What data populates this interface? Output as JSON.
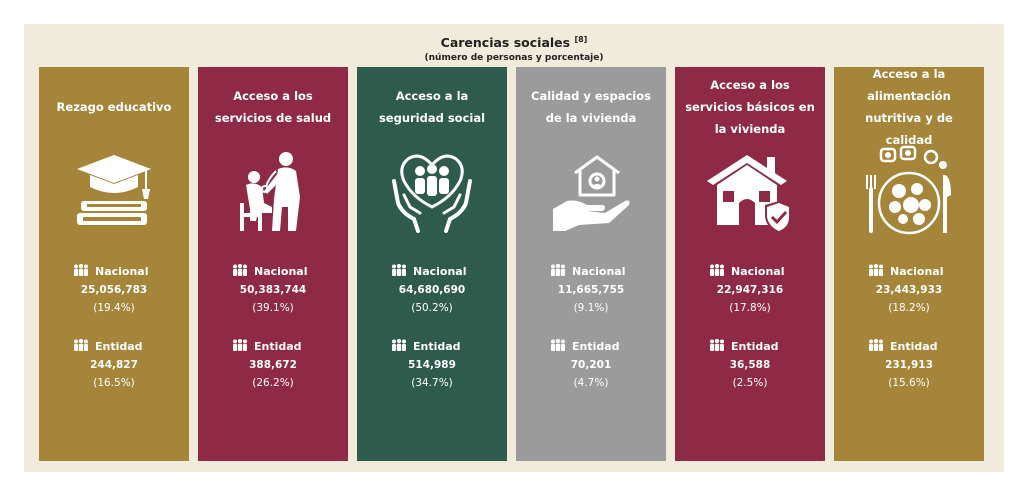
{
  "header": {
    "title": "Carencias sociales",
    "title_ref": "[8]",
    "subtitle": "(número de personas y porcentaje)"
  },
  "labels": {
    "nacional": "Nacional",
    "entidad": "Entidad"
  },
  "colors": {
    "gold": "#a5853a",
    "maroon": "#8e2a45",
    "green": "#2f5b4c",
    "gray": "#9b9b9b",
    "frame": "#f1ebdb"
  },
  "cards": [
    {
      "title": "Rezago educativo",
      "color": "#a5853a",
      "icon": "graduation-books-icon",
      "nacional_value": "25,056,783",
      "nacional_pct": "(19.4%)",
      "entidad_value": "244,827",
      "entidad_pct": "(16.5%)"
    },
    {
      "title": "Acceso a los servicios de salud",
      "color": "#8e2a45",
      "icon": "doctor-patient-icon",
      "nacional_value": "50,383,744",
      "nacional_pct": "(39.1%)",
      "entidad_value": "388,672",
      "entidad_pct": "(26.2%)"
    },
    {
      "title": "Acceso a la seguridad social",
      "color": "#2f5b4c",
      "icon": "hands-family-heart-icon",
      "nacional_value": "64,680,690",
      "nacional_pct": "(50.2%)",
      "entidad_value": "514,989",
      "entidad_pct": "(34.7%)"
    },
    {
      "title": "Calidad y espacios de la vivienda",
      "color": "#9b9b9b",
      "icon": "hand-house-icon",
      "nacional_value": "11,665,755",
      "nacional_pct": "(9.1%)",
      "entidad_value": "70,201",
      "entidad_pct": "(4.7%)"
    },
    {
      "title": "Acceso a los servicios básicos en la vivienda",
      "color": "#8e2a45",
      "icon": "house-shield-icon",
      "nacional_value": "22,947,316",
      "nacional_pct": "(17.8%)",
      "entidad_value": "36,588",
      "entidad_pct": "(2.5%)"
    },
    {
      "title": "Acceso a la alimentación nutritiva y de calidad",
      "color": "#a5853a",
      "icon": "plate-food-icon",
      "nacional_value": "23,443,933",
      "nacional_pct": "(18.2%)",
      "entidad_value": "231,913",
      "entidad_pct": "(15.6%)"
    }
  ],
  "chart_data": {
    "type": "table",
    "title": "Carencias sociales",
    "subtitle": "(número de personas y porcentaje)",
    "categories": [
      "Rezago educativo",
      "Acceso a los servicios de salud",
      "Acceso a la seguridad social",
      "Calidad y espacios de la vivienda",
      "Acceso a los servicios básicos en la vivienda",
      "Acceso a la alimentación nutritiva y de calidad"
    ],
    "series": [
      {
        "name": "Nacional",
        "persons": [
          25056783,
          50383744,
          64680690,
          11665755,
          22947316,
          23443933
        ],
        "percent": [
          19.4,
          39.1,
          50.2,
          9.1,
          17.8,
          18.2
        ]
      },
      {
        "name": "Entidad",
        "persons": [
          244827,
          388672,
          514989,
          70201,
          36588,
          231913
        ],
        "percent": [
          16.5,
          26.2,
          34.7,
          4.7,
          2.5,
          15.6
        ]
      }
    ]
  }
}
